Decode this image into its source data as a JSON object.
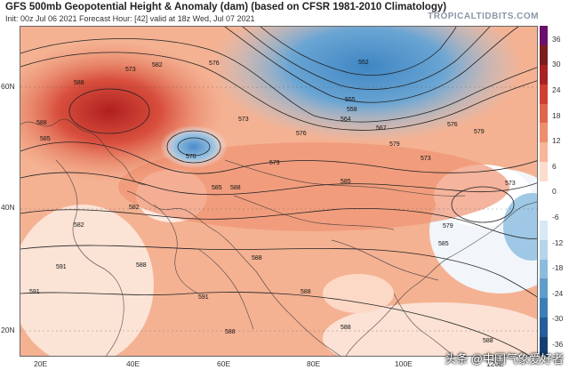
{
  "header": {
    "title": "GFS 500mb Geopotential Height & Anomaly (dam) (based on CFSR 1981-2010 Climatology)",
    "subtitle": "Init: 00z Jul 06 2021   Forecast Hour: [42]   valid at 18z Wed, Jul 07 2021",
    "brand": "TROPICALTIDBITS.COM"
  },
  "axes": {
    "lat_labels": [
      "60N",
      "40N",
      "20N"
    ],
    "lon_labels": [
      "20E",
      "40E",
      "60E",
      "80E",
      "100E",
      "120E"
    ]
  },
  "contour_labels": [
    "573",
    "576",
    "579",
    "582",
    "585",
    "588",
    "591",
    "552",
    "555",
    "558",
    "564",
    "567",
    "570"
  ],
  "colorbar": {
    "ticks": [
      "36",
      "30",
      "24",
      "18",
      "12",
      "6",
      "0",
      "-6",
      "-12",
      "-18",
      "-24",
      "-30",
      "-36"
    ],
    "colors": [
      "#6a0f6b",
      "#7a1d1d",
      "#a82323",
      "#cf3f31",
      "#e0664b",
      "#ee8e6d",
      "#f7b59a",
      "#fcdccc",
      "#ffffff",
      "#ffffff",
      "#d8e8f4",
      "#b6d4ea",
      "#8cbbdc",
      "#5f9dcb",
      "#3c7fb8",
      "#245e9a",
      "#153f73"
    ]
  },
  "watermark": "头条 @中国气象爱好者"
}
